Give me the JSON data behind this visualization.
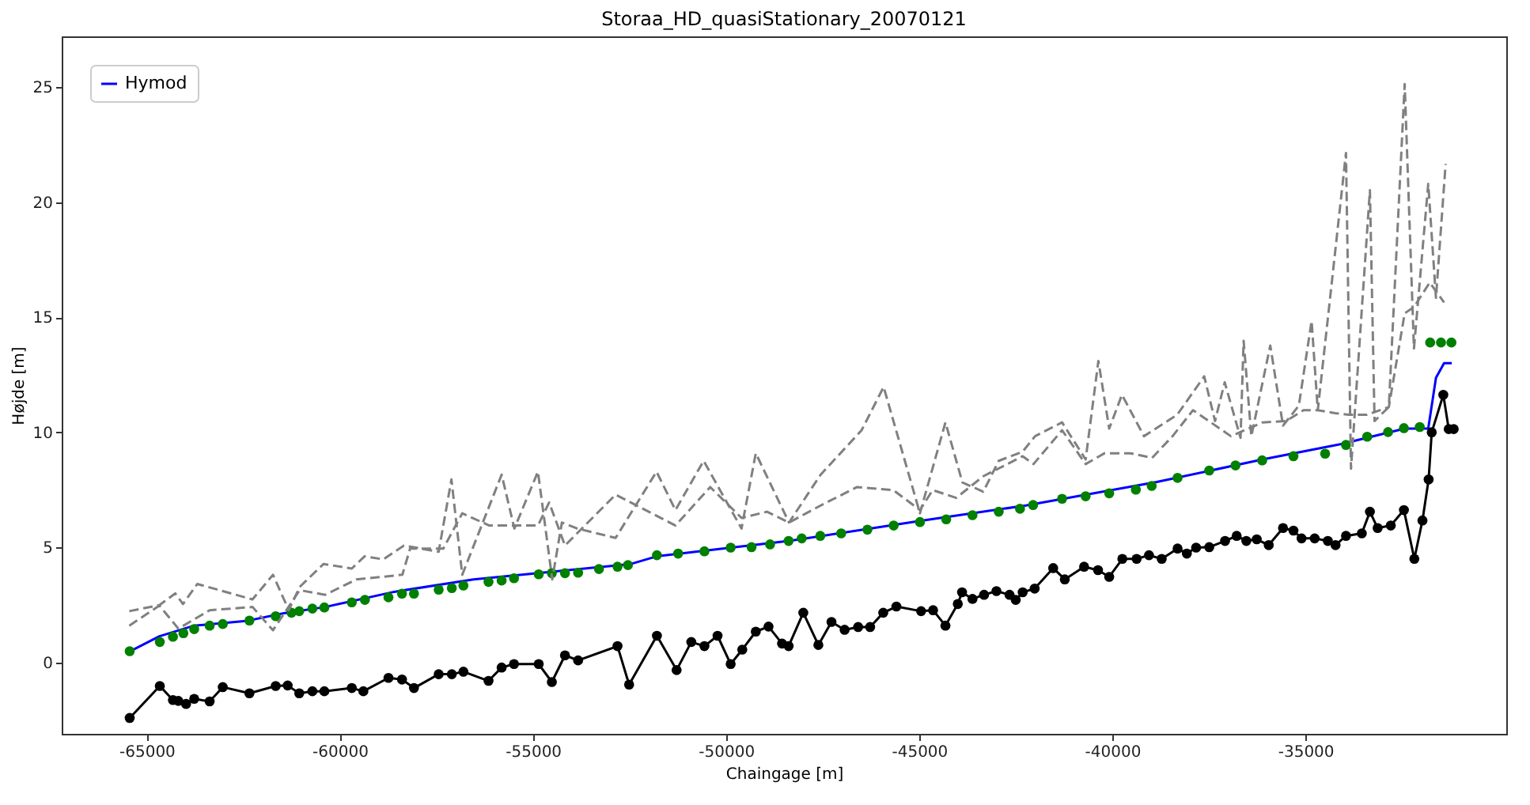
{
  "chart_data": {
    "type": "line",
    "title": "Storaa_HD_quasiStationary_20070121",
    "xlabel": "Chaingage [m]",
    "ylabel": "Højde [m]",
    "xlim": [
      -67200,
      -29800
    ],
    "xticks": [
      -65000,
      -60000,
      -55000,
      -50000,
      -45000,
      -40000,
      -35000
    ],
    "ylim": [
      -3.1,
      27.2
    ],
    "yticks": [
      0,
      5,
      10,
      15,
      20,
      25
    ],
    "grid": false,
    "legend": "top left",
    "series": [
      {
        "name": "Hymod",
        "color": "#0000ff",
        "x": [
          -65450,
          -64670,
          -63770,
          -62430,
          -61450,
          -60380,
          -58590,
          -56540,
          -54500,
          -52460,
          -51800,
          -48370,
          -44980,
          -42240,
          -38850,
          -36110,
          -34070,
          -32430,
          -31820,
          -31620,
          -31410,
          -31210
        ],
        "values": [
          0.47,
          1.14,
          1.6,
          1.8,
          2.14,
          2.41,
          3.07,
          3.61,
          3.94,
          4.28,
          4.61,
          5.28,
          6.15,
          6.82,
          7.84,
          8.82,
          9.49,
          10.16,
          10.16,
          12.37,
          13.0,
          13.0
        ]
      },
      {
        "type": "scatter",
        "marker": "circle",
        "color": "#008000",
        "x": [
          -65440,
          -64660,
          -64320,
          -64050,
          -63770,
          -63370,
          -63030,
          -62340,
          -61660,
          -61250,
          -61050,
          -60710,
          -60400,
          -59690,
          -59350,
          -58740,
          -58390,
          -58080,
          -57440,
          -57100,
          -56800,
          -56150,
          -55810,
          -55490,
          -54850,
          -54510,
          -54170,
          -53830,
          -53290,
          -52810,
          -52540,
          -51790,
          -51240,
          -50560,
          -49880,
          -49340,
          -48860,
          -48380,
          -48040,
          -47560,
          -47020,
          -46340,
          -45660,
          -44980,
          -44300,
          -43620,
          -42940,
          -42390,
          -42050,
          -41300,
          -40690,
          -40080,
          -39390,
          -38980,
          -38310,
          -37490,
          -36810,
          -36120,
          -35310,
          -34490,
          -33950,
          -33400,
          -32860,
          -32450,
          -32040,
          -31770,
          -31490,
          -31220
        ],
        "values": [
          0.49,
          0.89,
          1.12,
          1.27,
          1.45,
          1.6,
          1.67,
          1.82,
          2.01,
          2.16,
          2.23,
          2.34,
          2.39,
          2.61,
          2.72,
          2.83,
          2.99,
          2.99,
          3.16,
          3.23,
          3.34,
          3.5,
          3.56,
          3.66,
          3.83,
          3.88,
          3.88,
          3.9,
          4.06,
          4.16,
          4.23,
          4.66,
          4.73,
          4.83,
          4.99,
          5.01,
          5.13,
          5.28,
          5.39,
          5.5,
          5.61,
          5.77,
          5.95,
          6.1,
          6.22,
          6.4,
          6.55,
          6.68,
          6.84,
          7.11,
          7.22,
          7.35,
          7.51,
          7.67,
          8.02,
          8.34,
          8.56,
          8.78,
          8.96,
          9.07,
          9.45,
          9.81,
          10.01,
          10.18,
          10.23,
          13.9,
          13.9,
          13.9
        ]
      },
      {
        "marker": "circle",
        "color": "#000000",
        "x": [
          -65440,
          -64660,
          -64320,
          -64180,
          -63980,
          -63770,
          -63370,
          -63030,
          -62340,
          -61660,
          -61350,
          -61050,
          -60710,
          -60400,
          -59690,
          -59390,
          -58740,
          -58390,
          -58080,
          -57440,
          -57100,
          -56800,
          -56150,
          -55810,
          -55490,
          -54850,
          -54510,
          -54170,
          -53830,
          -52810,
          -52510,
          -51790,
          -51280,
          -50900,
          -50560,
          -50220,
          -49880,
          -49580,
          -49230,
          -48900,
          -48550,
          -48380,
          -48000,
          -47610,
          -47270,
          -46930,
          -46580,
          -46270,
          -45930,
          -45590,
          -44950,
          -44640,
          -44320,
          -44000,
          -43890,
          -43620,
          -43320,
          -43000,
          -42660,
          -42500,
          -42320,
          -42010,
          -41530,
          -41230,
          -40730,
          -40370,
          -40080,
          -39740,
          -39370,
          -39050,
          -38720,
          -38310,
          -38070,
          -37830,
          -37490,
          -37080,
          -36780,
          -36530,
          -36260,
          -35950,
          -35580,
          -35310,
          -35100,
          -34760,
          -34420,
          -34220,
          -33950,
          -33540,
          -33330,
          -33130,
          -32790,
          -32450,
          -32180,
          -31970,
          -31810,
          -31730,
          -31430,
          -31290,
          -31160
        ],
        "values": [
          -2.41,
          -1.02,
          -1.63,
          -1.67,
          -1.8,
          -1.58,
          -1.69,
          -1.07,
          -1.34,
          -1.02,
          -1.0,
          -1.34,
          -1.25,
          -1.25,
          -1.11,
          -1.25,
          -0.67,
          -0.74,
          -1.11,
          -0.51,
          -0.51,
          -0.4,
          -0.8,
          -0.22,
          -0.07,
          -0.07,
          -0.85,
          0.31,
          0.09,
          0.71,
          -0.96,
          1.16,
          -0.33,
          0.89,
          0.71,
          1.16,
          -0.07,
          0.56,
          1.34,
          1.56,
          0.82,
          0.71,
          2.16,
          0.76,
          1.76,
          1.42,
          1.54,
          1.54,
          2.16,
          2.43,
          2.23,
          2.27,
          1.6,
          2.54,
          3.05,
          2.76,
          2.94,
          3.1,
          2.94,
          2.72,
          3.05,
          3.21,
          4.1,
          3.61,
          4.16,
          4.01,
          3.72,
          4.5,
          4.5,
          4.66,
          4.5,
          4.95,
          4.73,
          4.99,
          5.01,
          5.28,
          5.5,
          5.28,
          5.35,
          5.1,
          5.84,
          5.73,
          5.39,
          5.39,
          5.28,
          5.1,
          5.5,
          5.61,
          6.55,
          5.84,
          5.95,
          6.62,
          4.5,
          6.17,
          7.95,
          10.0,
          11.63,
          10.14,
          10.14
        ]
      },
      {
        "line_style": "dashed",
        "color": "#808080",
        "x": [
          -65450,
          -64670,
          -64260,
          -64060,
          -63690,
          -62260,
          -61730,
          -61320,
          -61040,
          -60420,
          -59690,
          -59360,
          -58870,
          -58340,
          -57440,
          -57110,
          -56830,
          -55810,
          -55480,
          -54870,
          -54500,
          -54250,
          -53850,
          -52860,
          -51800,
          -51310,
          -50580,
          -49600,
          -49230,
          -48370,
          -47550,
          -46490,
          -45920,
          -44980,
          -44320,
          -43880,
          -43340,
          -42940,
          -42320,
          -42000,
          -41300,
          -40690,
          -40360,
          -40080,
          -39750,
          -39180,
          -38320,
          -37620,
          -37340,
          -37090,
          -36680,
          -36600,
          -36400,
          -35910,
          -35580,
          -35170,
          -34840,
          -34680,
          -33950,
          -33820,
          -33330,
          -33210,
          -32840,
          -32430,
          -32190,
          -31820,
          -31620,
          -31370
        ],
        "values": [
          2.23,
          2.49,
          3.0,
          2.54,
          3.41,
          2.74,
          3.81,
          2.27,
          3.28,
          4.28,
          4.08,
          4.61,
          4.48,
          5.08,
          4.81,
          7.95,
          3.81,
          8.16,
          5.82,
          8.29,
          3.61,
          6.08,
          5.82,
          5.41,
          8.29,
          6.62,
          8.76,
          5.82,
          9.09,
          6.08,
          8.16,
          10.09,
          11.97,
          6.48,
          10.43,
          7.82,
          7.42,
          8.76,
          9.16,
          9.83,
          10.43,
          8.82,
          13.1,
          10.16,
          11.63,
          9.83,
          10.76,
          12.43,
          10.49,
          12.17,
          9.76,
          13.97,
          9.83,
          13.77,
          10.29,
          11.16,
          14.84,
          10.96,
          22.13,
          8.42,
          20.52,
          10.49,
          11.1,
          25.13,
          13.64,
          20.79,
          15.84,
          21.66
        ]
      },
      {
        "line_style": "dashed",
        "color": "#808080",
        "x": [
          -65450,
          -64670,
          -64180,
          -63370,
          -62260,
          -61730,
          -61040,
          -60380,
          -59570,
          -58380,
          -58180,
          -57320,
          -56830,
          -56130,
          -55480,
          -54870,
          -54580,
          -54170,
          -52860,
          -51310,
          -50410,
          -49600,
          -48940,
          -48370,
          -47550,
          -46610,
          -45670,
          -44980,
          -44650,
          -44040,
          -43340,
          -42320,
          -42040,
          -41300,
          -40690,
          -40200,
          -39540,
          -38970,
          -38440,
          -37910,
          -37500,
          -36930,
          -36110,
          -35500,
          -35050,
          -34680,
          -34230,
          -33870,
          -33410,
          -32840,
          -32430,
          -32190,
          -31780,
          -31410
        ],
        "values": [
          1.6,
          2.47,
          1.47,
          2.27,
          2.41,
          1.4,
          3.14,
          2.94,
          3.61,
          3.81,
          4.95,
          4.95,
          6.48,
          5.95,
          5.95,
          5.95,
          6.95,
          5.08,
          7.29,
          5.95,
          7.62,
          6.28,
          6.55,
          6.08,
          6.82,
          7.62,
          7.49,
          6.62,
          7.49,
          7.15,
          8.09,
          8.96,
          8.62,
          10.09,
          8.62,
          9.09,
          9.09,
          8.89,
          9.83,
          10.96,
          10.49,
          9.83,
          10.43,
          10.49,
          10.96,
          10.96,
          10.83,
          10.76,
          10.76,
          11.1,
          15.17,
          15.44,
          16.51,
          15.64
        ]
      }
    ]
  }
}
